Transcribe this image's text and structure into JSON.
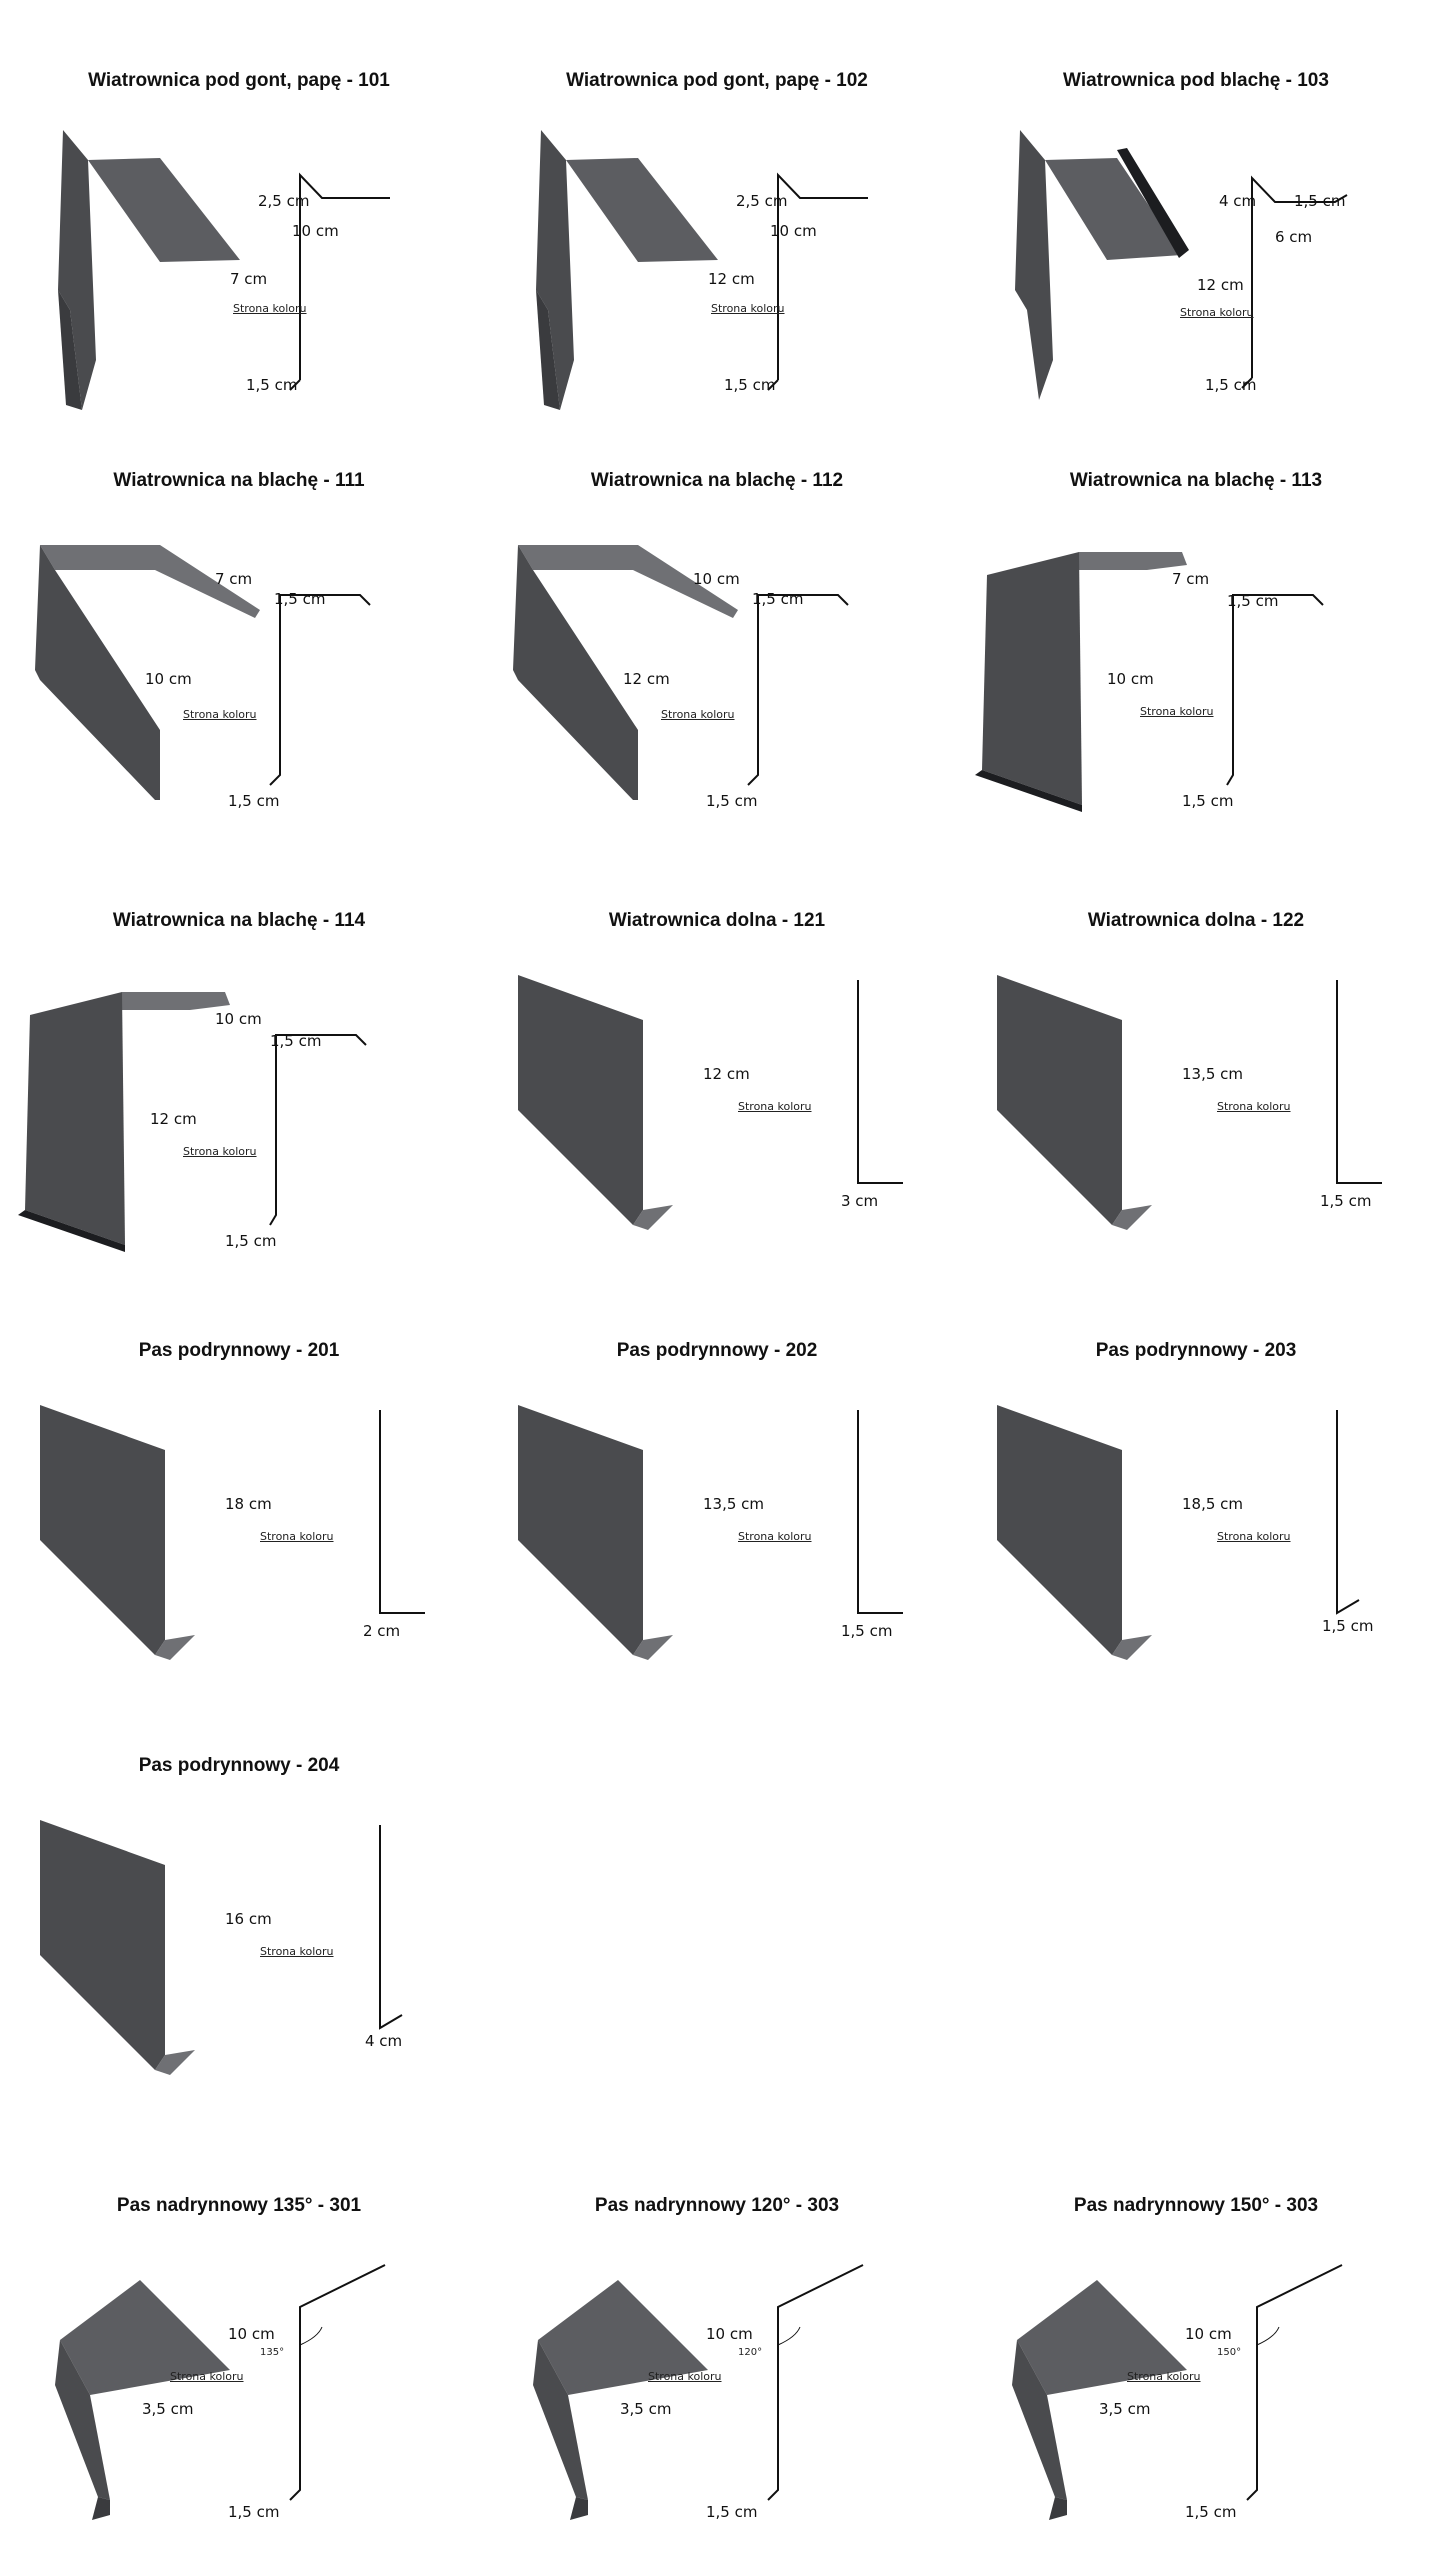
{
  "colors": {
    "metal_dark": "#4a4b4e",
    "metal_mid": "#5c5d61",
    "metal_light": "#6f7074",
    "metal_edge": "#3a3b3e",
    "line": "#111111",
    "background": "#ffffff"
  },
  "color_side_label": "Strona koloru",
  "products": [
    {
      "title": "Wiatrownica pod gont, papę - 101",
      "shape": "wiatr_a",
      "dims": {
        "a": "2,5 cm",
        "b": "10 cm",
        "c": "7 cm",
        "d": "1,5 cm"
      }
    },
    {
      "title": "Wiatrownica pod gont, papę - 102",
      "shape": "wiatr_a",
      "dims": {
        "a": "2,5 cm",
        "b": "10 cm",
        "c": "12 cm",
        "d": "1,5 cm"
      }
    },
    {
      "title": "Wiatrownica pod blachę - 103",
      "shape": "wiatr_b",
      "dims": {
        "a": "4 cm",
        "b": "6 cm",
        "e": "1,5 cm",
        "c": "12 cm",
        "d": "1,5 cm"
      }
    },
    {
      "title": "Wiatrownica na blachę - 111",
      "shape": "wiatr_c",
      "dims": {
        "b": "7 cm",
        "e": "1,5 cm",
        "c": "10 cm",
        "d": "1,5 cm"
      }
    },
    {
      "title": "Wiatrownica na blachę - 112",
      "shape": "wiatr_c",
      "dims": {
        "b": "10 cm",
        "e": "1,5 cm",
        "c": "12 cm",
        "d": "1,5 cm"
      }
    },
    {
      "title": "Wiatrownica na blachę - 113",
      "shape": "wiatr_d",
      "dims": {
        "b": "7 cm",
        "e": "1,5 cm",
        "c": "10 cm",
        "d": "1,5 cm"
      }
    },
    {
      "title": "Wiatrownica na blachę - 114",
      "shape": "wiatr_d",
      "dims": {
        "b": "10 cm",
        "e": "1,5 cm",
        "c": "12 cm",
        "d": "1,5 cm"
      }
    },
    {
      "title": "Wiatrownica dolna - 121",
      "shape": "l_foot",
      "dims": {
        "c": "12 cm",
        "d": "3 cm"
      }
    },
    {
      "title": "Wiatrownica dolna - 122",
      "shape": "l_foot",
      "dims": {
        "c": "13,5 cm",
        "d": "1,5 cm"
      }
    },
    {
      "title": "Pas podrynnowy - 201",
      "shape": "l_foot",
      "dims": {
        "c": "18 cm",
        "d": "2 cm"
      }
    },
    {
      "title": "Pas podrynnowy - 202",
      "shape": "l_foot",
      "dims": {
        "c": "13,5 cm",
        "d": "1,5 cm"
      }
    },
    {
      "title": "Pas podrynnowy - 203",
      "shape": "l_foot_angled",
      "dims": {
        "c": "18,5 cm",
        "d": "1,5 cm"
      }
    },
    {
      "title": "Pas podrynnowy - 204",
      "shape": "l_foot_angled",
      "dims": {
        "c": "16 cm",
        "d": "4 cm"
      }
    },
    {
      "title": "Pas nadrynnowy 135° - 301",
      "shape": "nadryn",
      "dims": {
        "b": "10 cm",
        "c": "3,5 cm",
        "d": "1,5 cm",
        "angle": "135°"
      }
    },
    {
      "title": "Pas nadrynnowy 120° - 303",
      "shape": "nadryn",
      "dims": {
        "b": "10 cm",
        "c": "3,5 cm",
        "d": "1,5 cm",
        "angle": "120°"
      }
    },
    {
      "title": "Pas nadrynnowy 150° - 303",
      "shape": "nadryn",
      "dims": {
        "b": "10 cm",
        "c": "3,5 cm",
        "d": "1,5 cm",
        "angle": "150°"
      }
    }
  ]
}
